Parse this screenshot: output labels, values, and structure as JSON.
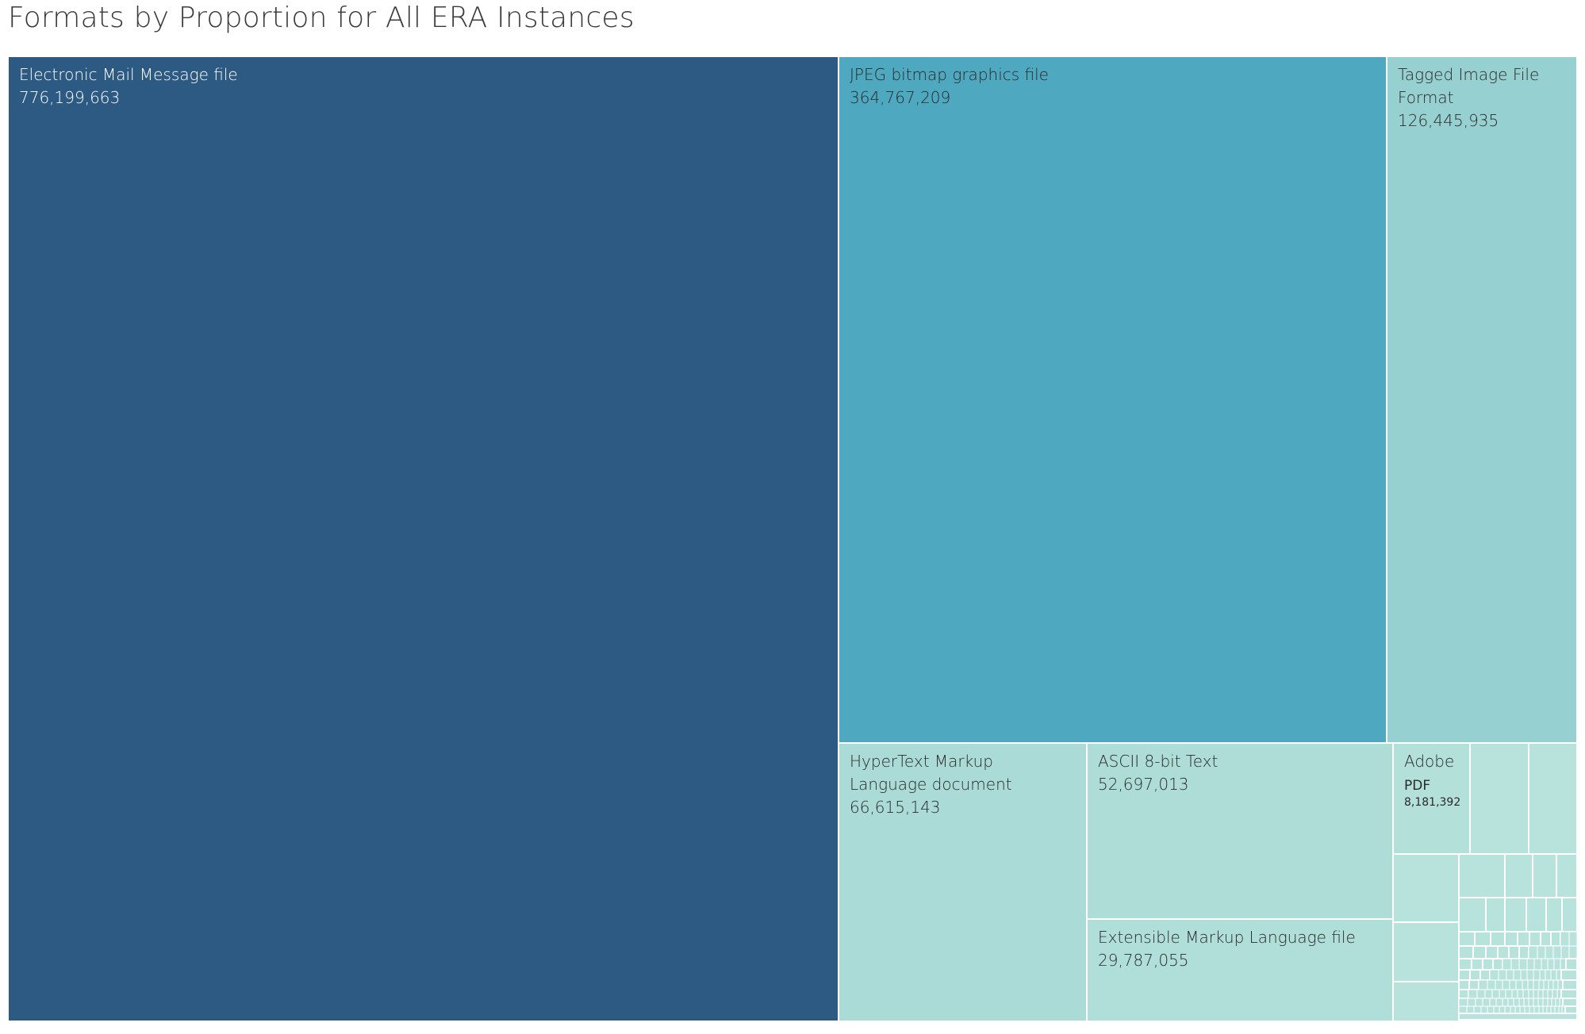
{
  "chart_data": {
    "type": "treemap",
    "title": "Formats by Proportion for All ERA Instances",
    "items": [
      {
        "name": "Electronic Mail Message file",
        "value": 776199663,
        "value_label": "776,199,663",
        "color": "#2c5a83"
      },
      {
        "name": "JPEG bitmap graphics file",
        "value": 364767209,
        "value_label": "364,767,209",
        "color": "#4ea8bf"
      },
      {
        "name": "Tagged Image File Format",
        "value": 126445935,
        "value_label": "126,445,935",
        "color": "#97d0d0"
      },
      {
        "name": "HyperText Markup Language document",
        "value": 66615143,
        "value_label": "66,615,143",
        "color": "#aadbd7"
      },
      {
        "name": "ASCII 8-bit Text",
        "value": 52697013,
        "value_label": "52,697,013",
        "color": "#aeddd7"
      },
      {
        "name": "Extensible Markup Language file",
        "value": 29787055,
        "value_label": "29,787,055",
        "color": "#b0ded8"
      },
      {
        "name": "Adobe PDF",
        "value": 8181392,
        "value_label": "8,181,392",
        "color": "#b4e0da"
      }
    ],
    "small_tile_color": "#b8e3dc",
    "label_color_dark_bg": "#ffffff",
    "label_color_light_bg": "#2a2a2a"
  }
}
